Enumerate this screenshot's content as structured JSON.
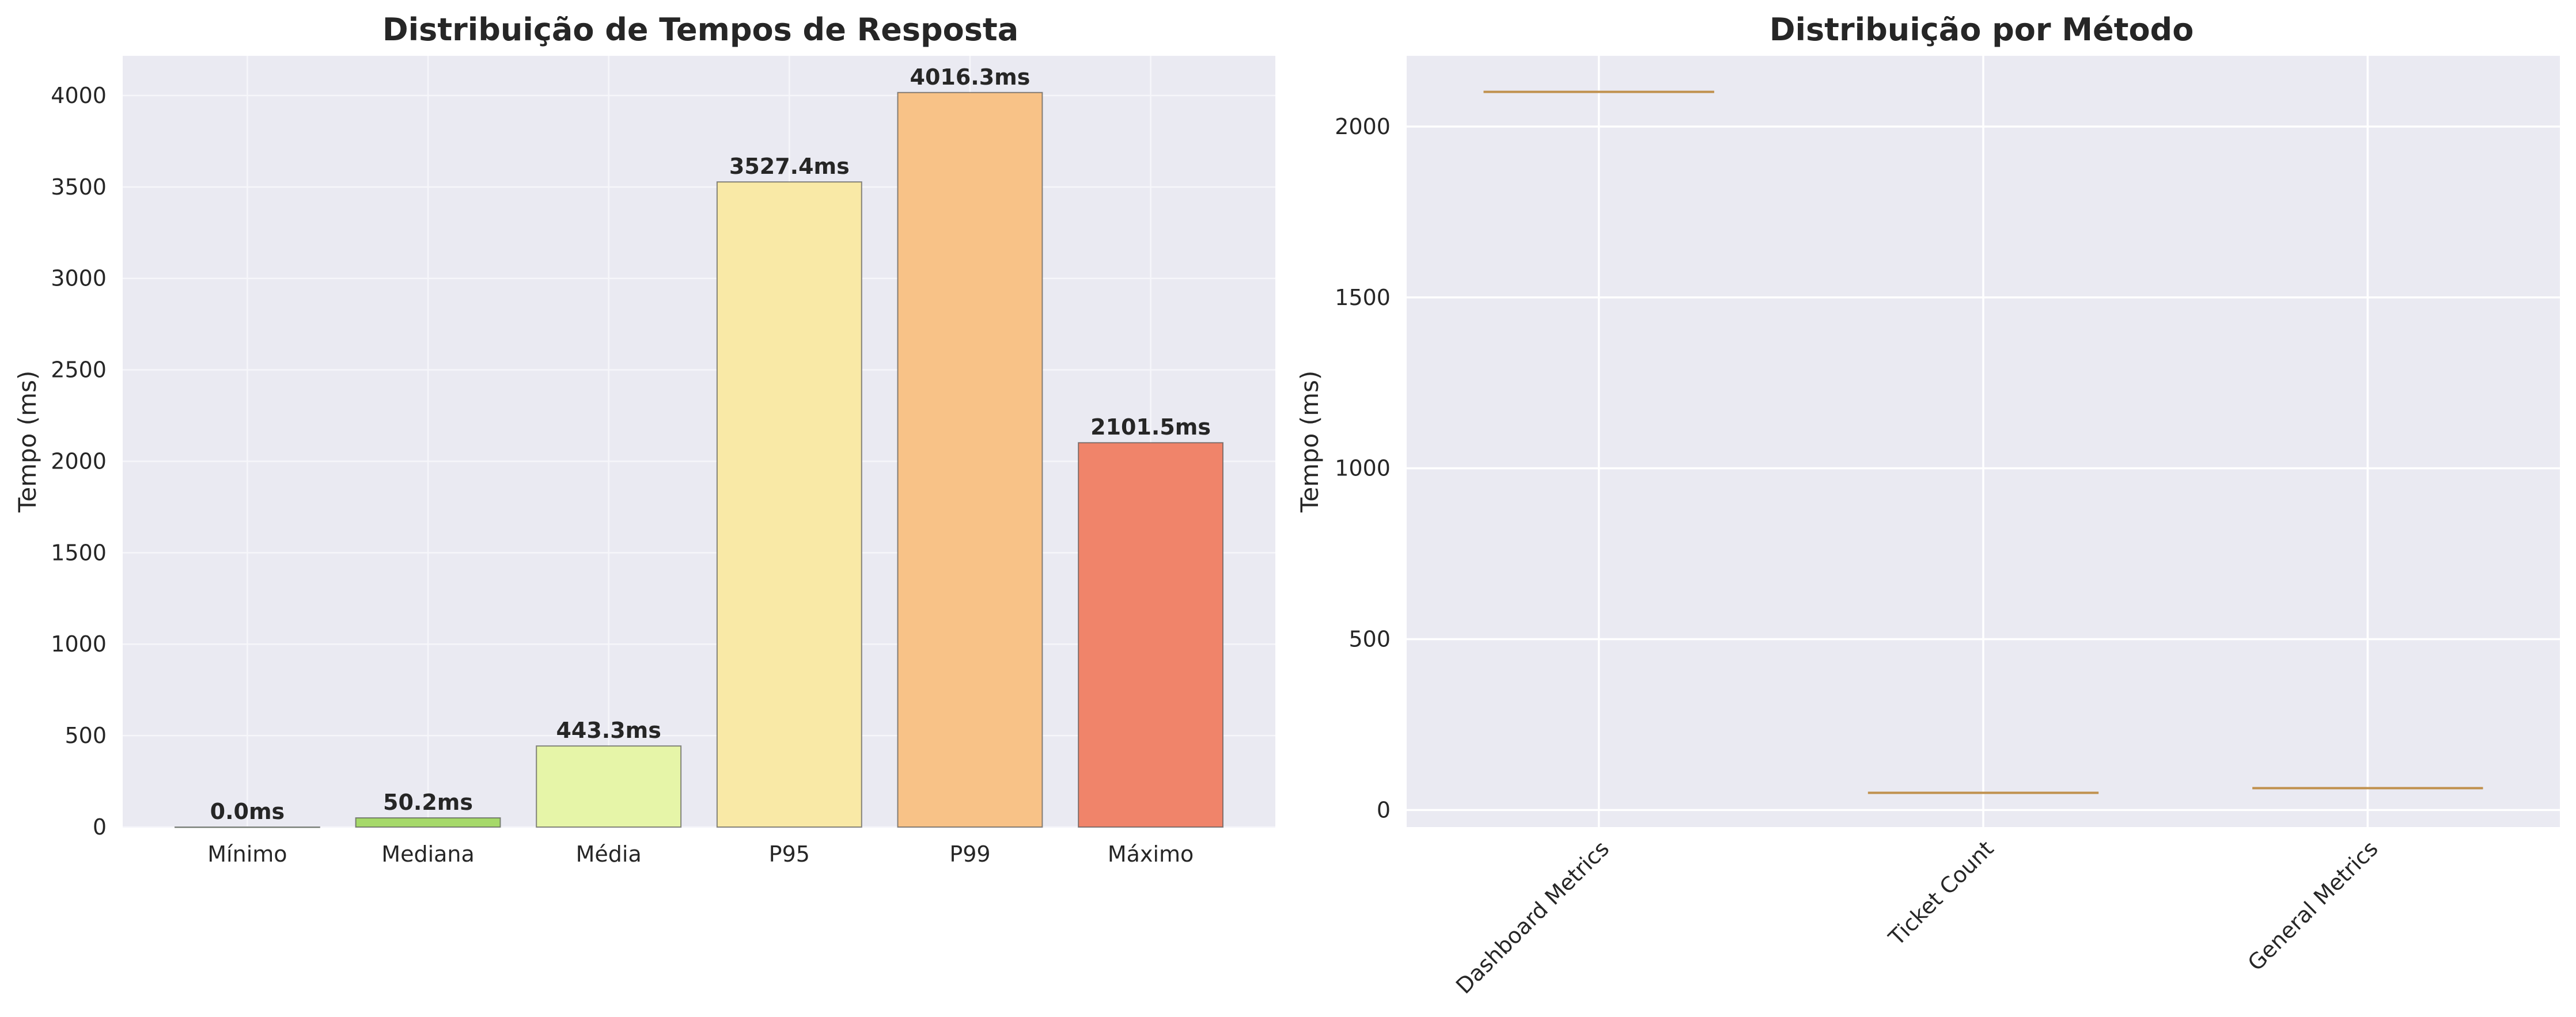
{
  "chart_data": [
    {
      "type": "bar",
      "title": "Distribuição de Tempos de Resposta",
      "xlabel": "",
      "ylabel": "Tempo (ms)",
      "categories": [
        "Mínimo",
        "Mediana",
        "Média",
        "P95",
        "P99",
        "Máximo"
      ],
      "values": [
        0.0,
        50.2,
        443.3,
        3527.4,
        4016.3,
        2101.5
      ],
      "data_labels": [
        "0.0ms",
        "50.2ms",
        "443.3ms",
        "3527.4ms",
        "4016.3ms",
        "2101.5ms"
      ],
      "colors": [
        "#4f9a3a",
        "#a6d96a",
        "#e6f5a8",
        "#f9e9a6",
        "#f8c287",
        "#f0846a"
      ],
      "yticks": [
        0,
        500,
        1000,
        1500,
        2000,
        2500,
        3000,
        3500,
        4000
      ],
      "ylim": [
        0,
        4217
      ],
      "grid": true
    },
    {
      "type": "box",
      "title": "Distribuição por Método",
      "xlabel": "",
      "ylabel": "Tempo (ms)",
      "categories": [
        "Dashboard Metrics",
        "Ticket Count",
        "General Metrics"
      ],
      "values": [
        2101.5,
        50.2,
        64.0
      ],
      "yticks": [
        0,
        500,
        1000,
        1500,
        2000
      ],
      "ylim": [
        -50,
        2207
      ],
      "grid": true,
      "median_color": "#c0914e"
    }
  ]
}
